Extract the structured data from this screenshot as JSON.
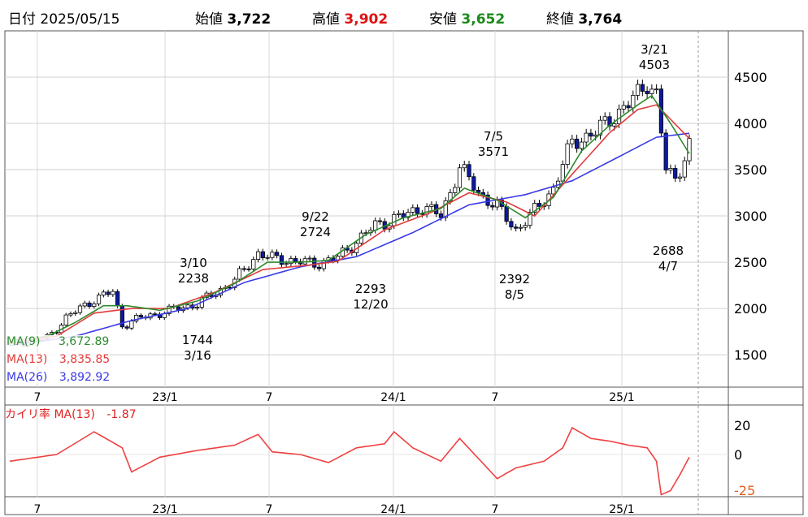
{
  "header": {
    "date_label": "日付",
    "date": "2025/05/15",
    "open_label": "始値",
    "open": "3,722",
    "high_label": "高値",
    "high": "3,902",
    "low_label": "安値",
    "low": "3,652",
    "close_label": "終値",
    "close": "3,764"
  },
  "colors": {
    "up_candle": "#ffffff",
    "down_candle": "#0b1aa0",
    "ma9": "#2e8b2e",
    "ma13": "#e23b3b",
    "ma26": "#3a3ae6",
    "high_value": "#e01010",
    "low_value": "#1a8a1a",
    "deviation_line": "#f04040"
  },
  "legend": {
    "ma9_label": "MA(9)",
    "ma9_value": "3,672.89",
    "ma13_label": "MA(13)",
    "ma13_value": "3,835.85",
    "ma26_label": "MA(26)",
    "ma26_value": "3,892.92"
  },
  "deviation_panel": {
    "label": "カイリ率 MA(13)",
    "value": "-1.87",
    "y_ticks": [
      "20",
      "0",
      "-25"
    ]
  },
  "chart_data": {
    "type": "candlestick",
    "x_ticks": [
      "7",
      "23/1",
      "7",
      "24/1",
      "7",
      "25/1"
    ],
    "y_ticks": [
      1500,
      2000,
      2500,
      3000,
      3500,
      4000,
      4500
    ],
    "ylim": [
      1150,
      5000
    ],
    "annotations": [
      {
        "date": "3/10",
        "price": "2238"
      },
      {
        "date": "3/16",
        "price": "1744"
      },
      {
        "date": "9/22",
        "price": "2724"
      },
      {
        "date": "12/20",
        "price": "2293"
      },
      {
        "date": "7/5",
        "price": "3571"
      },
      {
        "date": "8/5",
        "price": "2392"
      },
      {
        "date": "3/21",
        "price": "4503"
      },
      {
        "date": "4/7",
        "price": "2688"
      }
    ],
    "close_trend": [
      [
        0,
        1620
      ],
      [
        8,
        1680
      ],
      [
        12,
        1900
      ],
      [
        18,
        2100
      ],
      [
        22,
        2180
      ],
      [
        24,
        1820
      ],
      [
        28,
        1900
      ],
      [
        32,
        1950
      ],
      [
        40,
        2050
      ],
      [
        48,
        2300
      ],
      [
        53,
        2600
      ],
      [
        56,
        2540
      ],
      [
        60,
        2520
      ],
      [
        65,
        2480
      ],
      [
        70,
        2550
      ],
      [
        78,
        2900
      ],
      [
        84,
        3000
      ],
      [
        88,
        3100
      ],
      [
        92,
        3000
      ],
      [
        96,
        3530
      ],
      [
        100,
        3250
      ],
      [
        104,
        3100
      ],
      [
        108,
        2850
      ],
      [
        112,
        3050
      ],
      [
        116,
        3300
      ],
      [
        120,
        3800
      ],
      [
        125,
        3900
      ],
      [
        128,
        4050
      ],
      [
        132,
        4200
      ],
      [
        136,
        4450
      ],
      [
        138,
        4300
      ],
      [
        140,
        3500
      ],
      [
        142,
        3400
      ],
      [
        145,
        3764
      ]
    ],
    "ma9": [
      [
        0,
        1650
      ],
      [
        8,
        1700
      ],
      [
        14,
        1850
      ],
      [
        20,
        2030
      ],
      [
        25,
        2030
      ],
      [
        32,
        1980
      ],
      [
        40,
        2080
      ],
      [
        48,
        2270
      ],
      [
        55,
        2500
      ],
      [
        62,
        2500
      ],
      [
        68,
        2520
      ],
      [
        76,
        2800
      ],
      [
        84,
        2980
      ],
      [
        92,
        3080
      ],
      [
        97,
        3300
      ],
      [
        104,
        3170
      ],
      [
        110,
        2980
      ],
      [
        116,
        3200
      ],
      [
        122,
        3700
      ],
      [
        128,
        3980
      ],
      [
        134,
        4200
      ],
      [
        137,
        4300
      ],
      [
        141,
        4000
      ],
      [
        145,
        3673
      ]
    ],
    "ma13": [
      [
        0,
        1620
      ],
      [
        10,
        1700
      ],
      [
        18,
        1950
      ],
      [
        26,
        2000
      ],
      [
        34,
        2000
      ],
      [
        44,
        2180
      ],
      [
        54,
        2420
      ],
      [
        64,
        2470
      ],
      [
        70,
        2510
      ],
      [
        80,
        2850
      ],
      [
        90,
        3040
      ],
      [
        98,
        3250
      ],
      [
        106,
        3150
      ],
      [
        112,
        3000
      ],
      [
        120,
        3450
      ],
      [
        128,
        3900
      ],
      [
        134,
        4150
      ],
      [
        138,
        4200
      ],
      [
        145,
        3836
      ]
    ],
    "ma26": [
      [
        0,
        1600
      ],
      [
        14,
        1700
      ],
      [
        26,
        1870
      ],
      [
        38,
        2000
      ],
      [
        50,
        2280
      ],
      [
        62,
        2450
      ],
      [
        74,
        2560
      ],
      [
        86,
        2820
      ],
      [
        98,
        3120
      ],
      [
        110,
        3230
      ],
      [
        120,
        3380
      ],
      [
        130,
        3640
      ],
      [
        138,
        3850
      ],
      [
        145,
        3893
      ]
    ],
    "deviation": [
      [
        0,
        -5
      ],
      [
        10,
        0
      ],
      [
        18,
        17
      ],
      [
        24,
        5
      ],
      [
        26,
        -13
      ],
      [
        32,
        -2
      ],
      [
        40,
        3
      ],
      [
        48,
        7
      ],
      [
        53,
        15
      ],
      [
        56,
        2
      ],
      [
        62,
        0
      ],
      [
        68,
        -6
      ],
      [
        74,
        5
      ],
      [
        80,
        8
      ],
      [
        82,
        17
      ],
      [
        86,
        5
      ],
      [
        92,
        -5
      ],
      [
        96,
        12
      ],
      [
        100,
        -3
      ],
      [
        104,
        -18
      ],
      [
        108,
        -10
      ],
      [
        114,
        -5
      ],
      [
        118,
        5
      ],
      [
        120,
        20
      ],
      [
        124,
        12
      ],
      [
        128,
        10
      ],
      [
        132,
        7
      ],
      [
        136,
        5
      ],
      [
        138,
        -5
      ],
      [
        139,
        -30
      ],
      [
        141,
        -27
      ],
      [
        143,
        -15
      ],
      [
        145,
        -2
      ]
    ]
  }
}
